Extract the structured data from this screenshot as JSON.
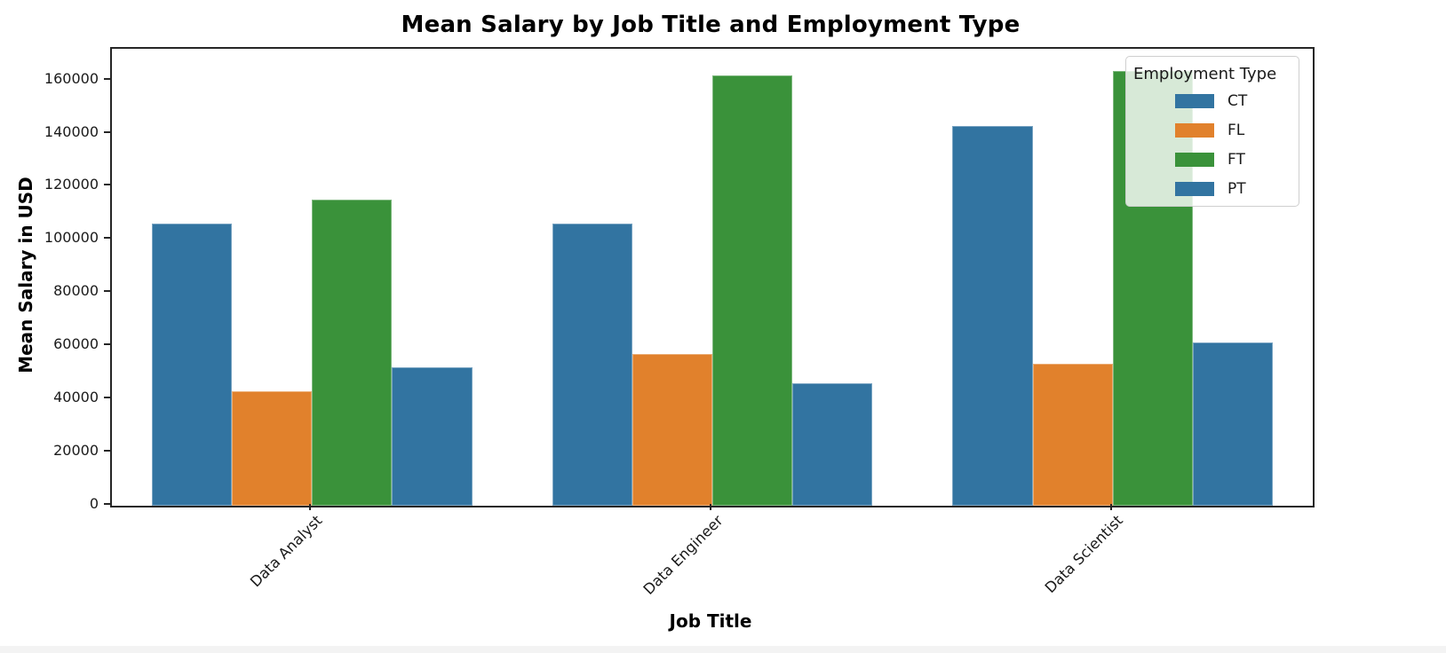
{
  "chart_data": {
    "type": "bar",
    "title": "Mean Salary by Job Title and Employment Type",
    "xlabel": "Job Title",
    "ylabel": "Mean Salary in USD",
    "categories": [
      "Data Analyst",
      "Data Engineer",
      "Data Scientist"
    ],
    "series": [
      {
        "name": "CT",
        "color": "#3274a1",
        "values": [
          106000,
          106000,
          143000
        ]
      },
      {
        "name": "FL",
        "color": "#e1812c",
        "values": [
          43000,
          57000,
          53500
        ]
      },
      {
        "name": "FT",
        "color": "#3a923a",
        "values": [
          115000,
          162000,
          163500
        ]
      },
      {
        "name": "PT",
        "color": "#3274a1",
        "values": [
          52000,
          46000,
          61500
        ]
      }
    ],
    "y_ticks": [
      0,
      20000,
      40000,
      60000,
      80000,
      100000,
      120000,
      140000,
      160000
    ],
    "ylim": [
      0,
      171900
    ],
    "grid": false,
    "legend": {
      "title": "Employment Type",
      "position": "upper right"
    }
  }
}
